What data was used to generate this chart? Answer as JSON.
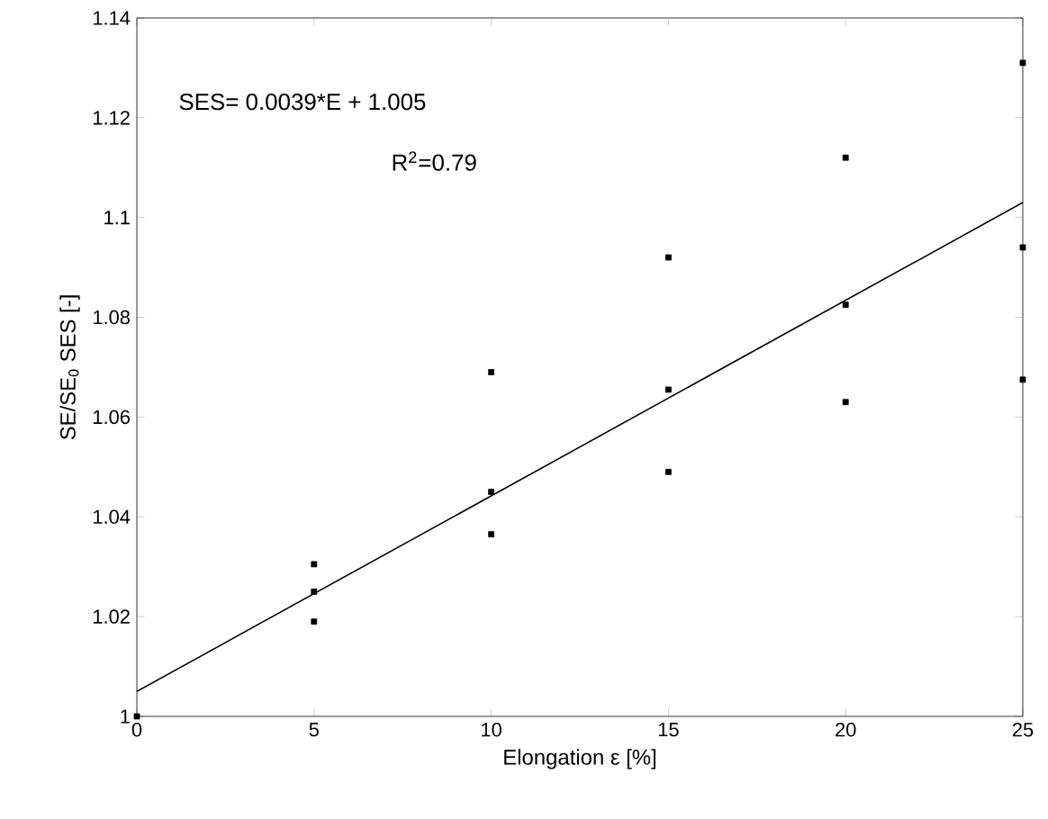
{
  "chart_data": {
    "type": "scatter",
    "xlabel": "Elongation ε [%]",
    "ylabel": "SE/SE$_{0}$ SES [-]",
    "annotations": [
      "SES= 0.0039*E + 1.005",
      "R$^{2}$=0.79"
    ],
    "xlim": [
      0,
      25
    ],
    "ylim": [
      1,
      1.14
    ],
    "xticks": [
      0,
      5,
      10,
      15,
      20,
      25
    ],
    "yticks": [
      1,
      1.02,
      1.04,
      1.06,
      1.08,
      1.1,
      1.12,
      1.14
    ],
    "grid": false,
    "series": [
      {
        "marker": "square",
        "color": "#000000",
        "x": [
          0,
          5,
          5,
          5,
          10,
          10,
          10,
          15,
          15,
          15,
          20,
          20,
          20,
          25,
          25,
          25
        ],
        "values": [
          1.0,
          1.0305,
          1.025,
          1.019,
          1.069,
          1.045,
          1.0365,
          1.092,
          1.0655,
          1.049,
          1.112,
          1.0825,
          1.063,
          1.131,
          1.094,
          1.0675
        ]
      },
      {
        "type": "line",
        "marker": "none",
        "color": "#000000",
        "line_style": "solid",
        "x": [
          0,
          25
        ],
        "values": [
          1.005,
          1.103
        ]
      }
    ]
  }
}
